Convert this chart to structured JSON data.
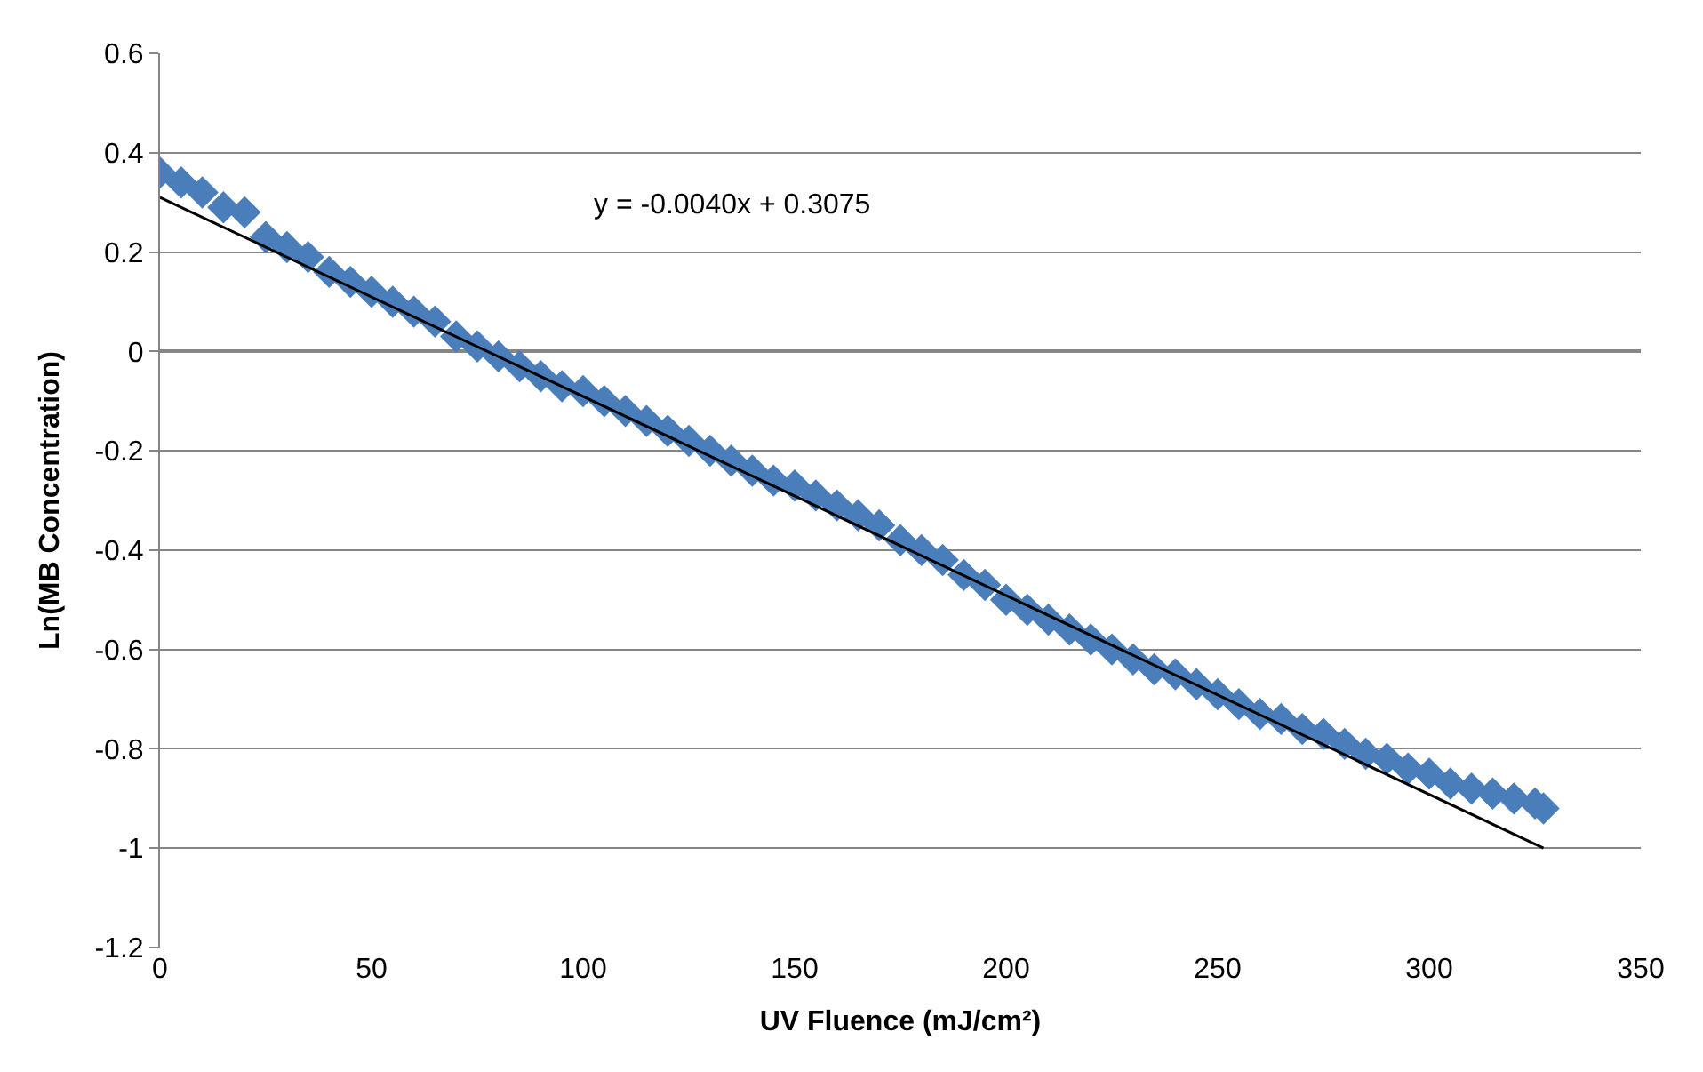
{
  "chart_data": {
    "type": "scatter",
    "xlabel": "UV Fluence (mJ/cm²)",
    "ylabel": "Ln(MB Concentration)",
    "x": [
      0,
      5,
      10,
      15,
      20,
      25,
      30,
      35,
      40,
      45,
      50,
      55,
      60,
      65,
      70,
      75,
      80,
      85,
      90,
      95,
      100,
      105,
      110,
      115,
      120,
      125,
      130,
      135,
      140,
      145,
      150,
      155,
      160,
      165,
      170,
      175,
      180,
      185,
      190,
      195,
      200,
      205,
      210,
      215,
      220,
      225,
      230,
      235,
      240,
      245,
      250,
      255,
      260,
      265,
      270,
      275,
      280,
      285,
      290,
      295,
      300,
      305,
      310,
      315,
      320,
      325,
      327
    ],
    "series": [
      {
        "color": "#4a7ebb",
        "marker": "diamond",
        "values": [
          0.36,
          0.34,
          0.32,
          0.29,
          0.28,
          0.23,
          0.21,
          0.19,
          0.16,
          0.14,
          0.12,
          0.1,
          0.08,
          0.06,
          0.03,
          0.01,
          -0.01,
          -0.03,
          -0.05,
          -0.07,
          -0.08,
          -0.1,
          -0.12,
          -0.14,
          -0.16,
          -0.18,
          -0.2,
          -0.22,
          -0.24,
          -0.26,
          -0.27,
          -0.29,
          -0.31,
          -0.33,
          -0.35,
          -0.38,
          -0.4,
          -0.42,
          -0.45,
          -0.47,
          -0.5,
          -0.52,
          -0.54,
          -0.56,
          -0.58,
          -0.6,
          -0.62,
          -0.64,
          -0.65,
          -0.67,
          -0.69,
          -0.71,
          -0.73,
          -0.74,
          -0.76,
          -0.77,
          -0.79,
          -0.81,
          -0.82,
          -0.84,
          -0.85,
          -0.87,
          -0.88,
          -0.89,
          -0.9,
          -0.91,
          -0.92
        ]
      },
      {
        "type": "line",
        "color": "#000000",
        "marker": "none",
        "x": [
          0,
          327
        ],
        "values": [
          0.31,
          -1.0
        ]
      }
    ],
    "annotations": [
      "y = -0.0040x + 0.3075"
    ],
    "xlim": [
      0,
      350
    ],
    "xticks": [
      0,
      50,
      100,
      150,
      200,
      250,
      300,
      350
    ],
    "ylim": [
      -1.2,
      0.6
    ],
    "yticks": [
      -1.2,
      -1,
      -0.8,
      -0.6,
      -0.4,
      -0.2,
      0,
      0.2,
      0.4,
      0.6
    ],
    "grid": "y"
  }
}
